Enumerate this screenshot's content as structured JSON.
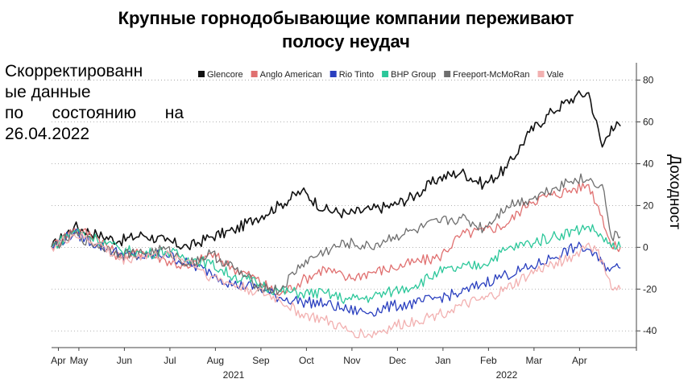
{
  "title": {
    "line1": "Крупные горнодобывающие компании переживают",
    "line2": "полосу неудач"
  },
  "note": {
    "line1": "Скорректированн",
    "line2": "ые данные",
    "line3": "по состоянию на",
    "line4": "26.04.2022"
  },
  "colors": {
    "Glencore": "#111111",
    "Anglo American": "#e07070",
    "Rio Tinto": "#2a3fbf",
    "BHP Group": "#2bc79a",
    "Freeport-McMoRan": "#6e6e6e",
    "Vale": "#f2b0b0"
  },
  "chart_data": {
    "type": "line",
    "title": "Крупные горнодобывающие компании переживают полосу неудач",
    "ylabel": "Доходност",
    "ylim": [
      -48,
      86
    ],
    "yticks": [
      80,
      60,
      40,
      20,
      0,
      -20,
      -40
    ],
    "ytick_labels": [
      "80",
      "60",
      "40",
      "20",
      "0",
      "-20",
      "-40"
    ],
    "xlim": [
      0,
      12.85
    ],
    "x_months": [
      "Apr",
      "May",
      "Jun",
      "Jul",
      "Aug",
      "Sep",
      "Oct",
      "Nov",
      "Dec",
      "Jan",
      "Feb",
      "Mar",
      "Apr"
    ],
    "x_month_pos": [
      0.15,
      0.6,
      1.6,
      2.6,
      3.6,
      4.6,
      5.6,
      6.6,
      7.6,
      8.6,
      9.6,
      10.6,
      11.6
    ],
    "x_years": [
      "2021",
      "2022"
    ],
    "x_year_pos": [
      4.0,
      10.0
    ],
    "grid": "horizontal",
    "legend_position": "top",
    "x": [
      0,
      0.5,
      1,
      1.5,
      2,
      2.5,
      3,
      3.5,
      4,
      4.5,
      5,
      5.5,
      6,
      6.5,
      7,
      7.5,
      8,
      8.5,
      9,
      9.5,
      10,
      10.5,
      11,
      11.5,
      11.8,
      12.1,
      12.3,
      12.5
    ],
    "series": [
      {
        "name": "Glencore",
        "values": [
          0,
          10,
          6,
          3,
          6,
          3,
          0,
          5,
          8,
          14,
          20,
          27,
          18,
          16,
          18,
          20,
          25,
          33,
          36,
          30,
          38,
          55,
          65,
          72,
          74,
          48,
          58,
          58
        ]
      },
      {
        "name": "Anglo American",
        "values": [
          0,
          9,
          5,
          -5,
          -2,
          -6,
          -10,
          -3,
          -10,
          -15,
          -23,
          -16,
          -10,
          -15,
          -12,
          -10,
          -7,
          -5,
          6,
          8,
          11,
          22,
          25,
          28,
          30,
          15,
          0,
          0
        ]
      },
      {
        "name": "Rio Tinto",
        "values": [
          0,
          7,
          1,
          -3,
          -5,
          -3,
          -8,
          -12,
          -18,
          -19,
          -24,
          -26,
          -27,
          -30,
          -31,
          -28,
          -27,
          -24,
          -22,
          -17,
          -13,
          -10,
          -5,
          0,
          -1,
          -8,
          -10,
          -10
        ]
      },
      {
        "name": "BHP Group",
        "values": [
          0,
          8,
          4,
          -1,
          -3,
          -2,
          -5,
          -8,
          -14,
          -17,
          -21,
          -22,
          -22,
          -25,
          -24,
          -21,
          -18,
          -12,
          -10,
          -8,
          -1,
          2,
          5,
          8,
          10,
          5,
          0,
          0
        ]
      },
      {
        "name": "Freeport-McMoRan",
        "values": [
          0,
          6,
          1,
          -3,
          -3,
          -1,
          -8,
          -3,
          -10,
          -18,
          -21,
          -8,
          -2,
          2,
          0,
          5,
          8,
          12,
          14,
          9,
          20,
          23,
          28,
          33,
          32,
          30,
          5,
          5
        ]
      },
      {
        "name": "Vale",
        "values": [
          0,
          6,
          2,
          -6,
          -4,
          -4,
          -6,
          -14,
          -18,
          -21,
          -25,
          -32,
          -35,
          -40,
          -42,
          -38,
          -35,
          -32,
          -28,
          -25,
          -20,
          -13,
          -8,
          -4,
          2,
          -6,
          -20,
          -20
        ]
      }
    ]
  }
}
